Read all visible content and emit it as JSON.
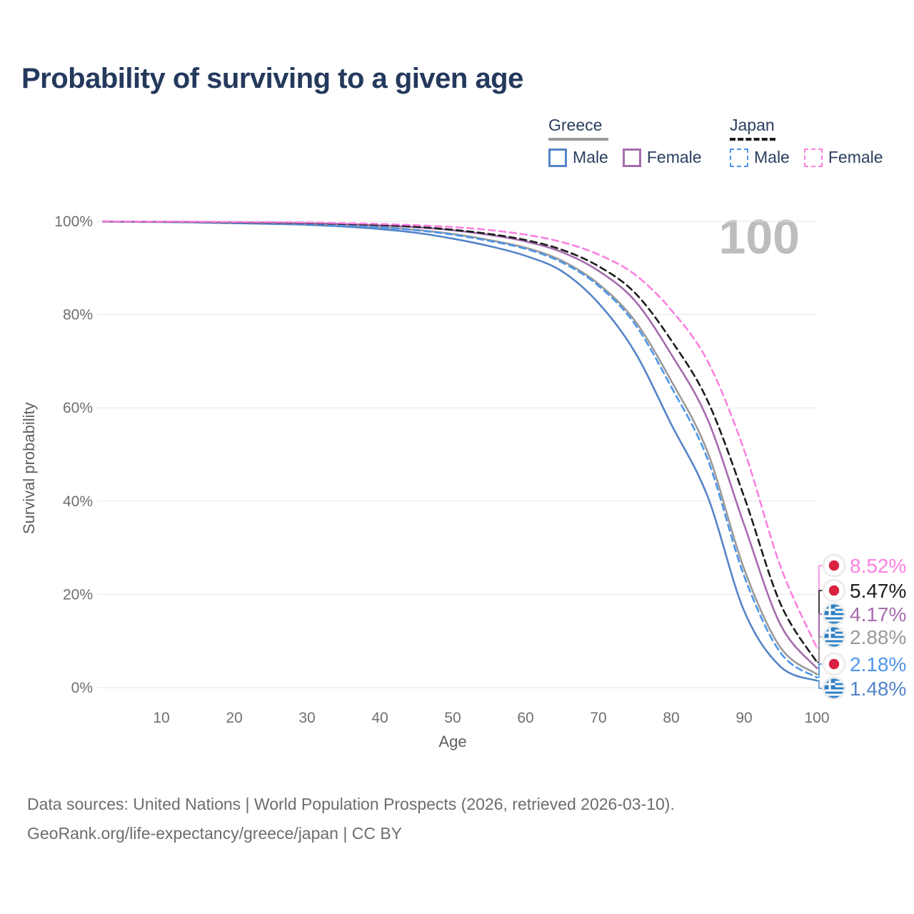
{
  "title": "Probability of surviving to a given age",
  "watermark": "100",
  "legend": {
    "groups": [
      {
        "label": "Greece",
        "line_style": "solid",
        "items": [
          {
            "label": "Male"
          },
          {
            "label": "Female"
          }
        ]
      },
      {
        "label": "Japan",
        "line_style": "dashed",
        "items": [
          {
            "label": "Male"
          },
          {
            "label": "Female"
          }
        ]
      }
    ]
  },
  "chart_data": {
    "type": "line",
    "title": "Probability of surviving to a given age",
    "xlabel": "Age",
    "ylabel": "Survival probability",
    "legend_position": "top-right",
    "x_axis": {
      "min": 0,
      "max": 100,
      "ticks": [
        10,
        20,
        30,
        40,
        50,
        60,
        70,
        80,
        90,
        100
      ]
    },
    "y_axis": {
      "min": 0,
      "max": 100,
      "ticks": [
        0,
        20,
        40,
        60,
        80,
        100
      ],
      "tick_suffix": "%",
      "grid": true
    },
    "x": [
      2,
      5,
      10,
      15,
      20,
      25,
      30,
      35,
      40,
      45,
      50,
      55,
      60,
      65,
      70,
      75,
      80,
      85,
      90,
      95,
      100
    ],
    "series": [
      {
        "name": "Greece Male",
        "country": "greece",
        "sex": "Male",
        "color": "#5584c8",
        "dash": "solid",
        "end_label": "1.48%",
        "values": [
          99.95,
          99.9,
          99.85,
          99.75,
          99.6,
          99.45,
          99.25,
          98.9,
          98.35,
          97.55,
          96.3,
          94.7,
          92.6,
          89.3,
          82.5,
          72.0,
          56.5,
          41.0,
          16.5,
          4.5,
          1.48
        ]
      },
      {
        "name": "Greece",
        "country": "greece",
        "sex": "All",
        "color": "#9a9a9a",
        "dash": "solid",
        "end_label": "2.88%",
        "values": [
          99.96,
          99.93,
          99.9,
          99.83,
          99.72,
          99.6,
          99.44,
          99.17,
          98.78,
          98.18,
          97.3,
          96.0,
          94.35,
          91.55,
          86.6,
          78.7,
          65.8,
          50.5,
          25.5,
          8.6,
          2.88
        ]
      },
      {
        "name": "Japan Male",
        "country": "japan",
        "sex": "Male",
        "color": "#4d96ea",
        "dash": "dashed",
        "end_label": "2.18%",
        "values": [
          99.96,
          99.93,
          99.9,
          99.82,
          99.7,
          99.58,
          99.4,
          99.1,
          98.7,
          98.1,
          97.15,
          95.8,
          94.1,
          91.2,
          86.2,
          78.0,
          64.5,
          49.0,
          24.0,
          7.5,
          2.18
        ]
      },
      {
        "name": "Greece Female",
        "country": "greece",
        "sex": "Female",
        "color": "#a56cad",
        "dash": "solid",
        "end_label": "4.17%",
        "values": [
          99.97,
          99.95,
          99.92,
          99.87,
          99.8,
          99.72,
          99.6,
          99.42,
          99.15,
          98.75,
          98.1,
          97.1,
          95.7,
          93.4,
          89.4,
          83.0,
          71.5,
          57.5,
          35.0,
          13.5,
          4.17
        ]
      },
      {
        "name": "Japan",
        "country": "japan",
        "sex": "All",
        "color": "#1c1c1c",
        "dash": "dashed",
        "end_label": "5.47%",
        "values": [
          99.97,
          99.95,
          99.92,
          99.87,
          99.81,
          99.73,
          99.62,
          99.45,
          99.2,
          98.82,
          98.2,
          97.3,
          96.0,
          93.9,
          90.4,
          84.7,
          74.5,
          61.5,
          41.0,
          18.0,
          5.47
        ]
      },
      {
        "name": "Japan Female",
        "country": "japan",
        "sex": "Female",
        "color": "#fb80e1",
        "dash": "dashed",
        "end_label": "8.52%",
        "values": [
          99.98,
          99.97,
          99.95,
          99.92,
          99.88,
          99.83,
          99.75,
          99.62,
          99.45,
          99.18,
          98.78,
          98.15,
          97.15,
          95.55,
          92.9,
          88.6,
          81.0,
          70.0,
          51.0,
          26.0,
          8.52
        ]
      }
    ]
  },
  "footer": {
    "line1": "Data sources: United Nations | World Population Prospects (2026, retrieved 2026-03-10).",
    "line2": "GeoRank.org/life-expectancy/greece/japan | CC BY"
  }
}
